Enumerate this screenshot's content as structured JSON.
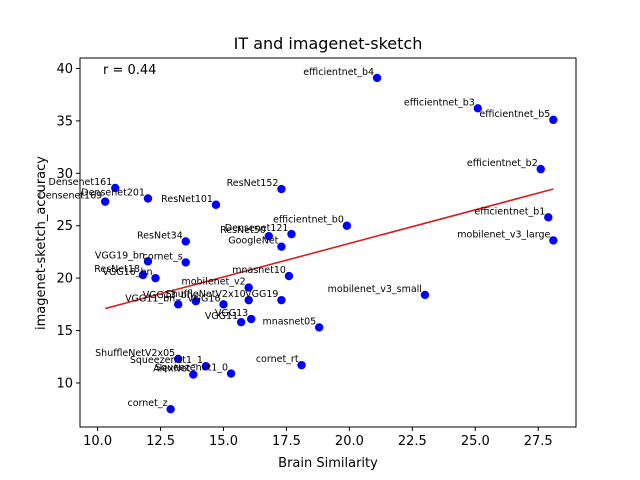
{
  "chart_data": {
    "type": "scatter",
    "title": "IT and imagenet-sketch",
    "xlabel": "Brain Similarity",
    "ylabel": "imagenet-sketch_accuracy",
    "annotation": "r = 0.44",
    "xlim": [
      9.3,
      29.0
    ],
    "ylim": [
      5.8,
      41.0
    ],
    "xticks": [
      10.0,
      12.5,
      15.0,
      17.5,
      20.0,
      22.5,
      25.0,
      27.5
    ],
    "xtick_labels": [
      "10.0",
      "12.5",
      "15.0",
      "17.5",
      "20.0",
      "22.5",
      "25.0",
      "27.5"
    ],
    "yticks": [
      10,
      15,
      20,
      25,
      30,
      35,
      40
    ],
    "ytick_labels": [
      "10",
      "15",
      "20",
      "25",
      "30",
      "35",
      "40"
    ],
    "grid": false,
    "point_color": "#0000ff",
    "fit_color": "#d62020",
    "fit_line": {
      "x": [
        10.3,
        28.1
      ],
      "y": [
        17.1,
        28.5
      ]
    },
    "points": [
      {
        "label": "efficientnet_b4",
        "x": 21.1,
        "y": 39.1
      },
      {
        "label": "efficientnet_b3",
        "x": 25.1,
        "y": 36.2
      },
      {
        "label": "efficientnet_b5",
        "x": 28.1,
        "y": 35.1
      },
      {
        "label": "efficientnet_b2",
        "x": 27.6,
        "y": 30.4
      },
      {
        "label": "Densenet161",
        "x": 10.7,
        "y": 28.6
      },
      {
        "label": "Densenet201",
        "x": 12.0,
        "y": 27.6
      },
      {
        "label": "Densenet169",
        "x": 10.3,
        "y": 27.3
      },
      {
        "label": "ResNet101",
        "x": 14.7,
        "y": 27.0
      },
      {
        "label": "ResNet152",
        "x": 17.3,
        "y": 28.5
      },
      {
        "label": "efficientnet_b0",
        "x": 19.9,
        "y": 25.0
      },
      {
        "label": "efficientnet_b1",
        "x": 27.9,
        "y": 25.8
      },
      {
        "label": "mobilenet_v3_large",
        "x": 28.1,
        "y": 23.6
      },
      {
        "label": "Densenet121",
        "x": 17.7,
        "y": 24.2
      },
      {
        "label": "ResNet50",
        "x": 16.8,
        "y": 24.0
      },
      {
        "label": "GoogleNet",
        "x": 17.3,
        "y": 23.0
      },
      {
        "label": "ResNet34",
        "x": 13.5,
        "y": 23.5
      },
      {
        "label": "VGG19_bn",
        "x": 12.0,
        "y": 21.6
      },
      {
        "label": "cornet_s",
        "x": 13.5,
        "y": 21.5
      },
      {
        "label": "ResNet18",
        "x": 11.8,
        "y": 20.3
      },
      {
        "label": "VGG16_bn",
        "x": 12.3,
        "y": 20.0
      },
      {
        "label": "mnasnet10",
        "x": 17.6,
        "y": 20.2
      },
      {
        "label": "mobilenet_v2",
        "x": 16.0,
        "y": 19.1
      },
      {
        "label": "mobilenet_v3_small",
        "x": 23.0,
        "y": 18.4
      },
      {
        "label": "VGG13_bn",
        "x": 13.9,
        "y": 17.8
      },
      {
        "label": "VGG11_bn",
        "x": 13.2,
        "y": 17.5
      },
      {
        "label": "ShuffleNetV2x10",
        "x": 16.0,
        "y": 17.9
      },
      {
        "label": "VGG16",
        "x": 15.0,
        "y": 17.5
      },
      {
        "label": "VGG19",
        "x": 17.3,
        "y": 17.9
      },
      {
        "label": "VGG13",
        "x": 16.1,
        "y": 16.1
      },
      {
        "label": "VGG11",
        "x": 15.7,
        "y": 15.8
      },
      {
        "label": "mnasnet05",
        "x": 18.8,
        "y": 15.3
      },
      {
        "label": "ShuffleNetV2x05",
        "x": 13.2,
        "y": 12.3
      },
      {
        "label": "Squeezenet1_1",
        "x": 14.3,
        "y": 11.6
      },
      {
        "label": "AlexNet",
        "x": 13.8,
        "y": 10.8
      },
      {
        "label": "Squeezenet1_0",
        "x": 15.3,
        "y": 10.9
      },
      {
        "label": "cornet_rt",
        "x": 18.1,
        "y": 11.7
      },
      {
        "label": "cornet_z",
        "x": 12.9,
        "y": 7.5
      }
    ]
  }
}
